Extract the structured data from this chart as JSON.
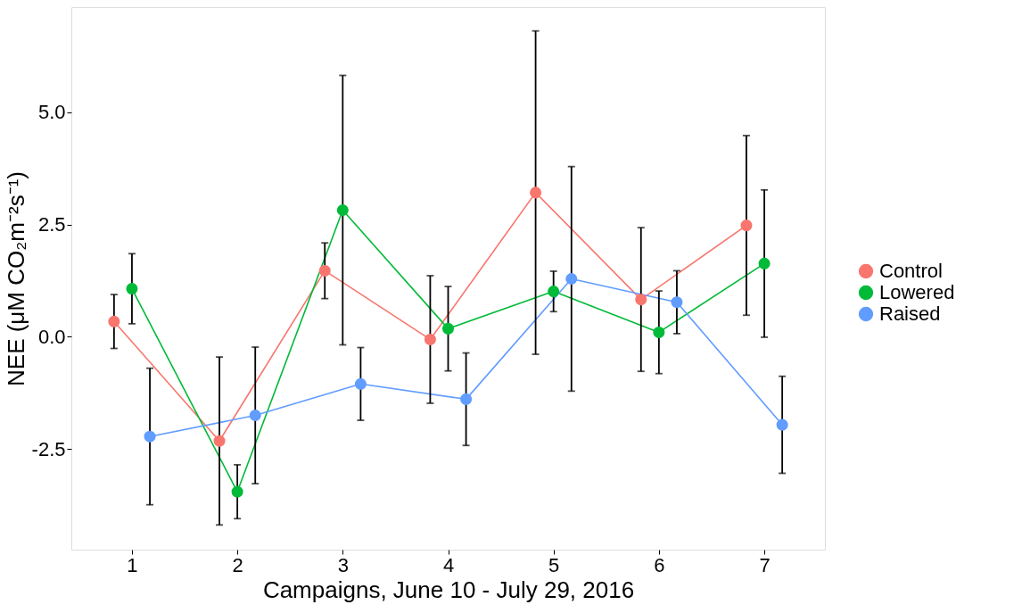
{
  "chart_data": {
    "type": "line",
    "xlabel": "Campaigns, June 10 - July 29, 2016",
    "ylabel": "NEE (μM CO₂m⁻²s⁻¹)",
    "xlim": [
      0.425,
      7.575
    ],
    "xticks": [
      1,
      2,
      3,
      4,
      5,
      6,
      7
    ],
    "ylim": [
      -4.74,
      7.34
    ],
    "yticks": [
      {
        "value": 5,
        "label": "5.0"
      },
      {
        "value": 2.5,
        "label": "2.5"
      },
      {
        "value": 0,
        "label": "0.0"
      },
      {
        "value": -2.5,
        "label": "-2.5"
      }
    ],
    "grid": false,
    "legend": "right",
    "marker": "circle",
    "line_style": "solid",
    "series": [
      {
        "name": "Control",
        "color": "#f8766d",
        "x": [
          0.83,
          1.83,
          2.83,
          3.83,
          4.83,
          5.83,
          6.83
        ],
        "values": [
          0.34,
          -2.32,
          1.47,
          -0.06,
          3.21,
          0.83,
          2.48
        ],
        "errors": [
          0.6,
          1.87,
          0.62,
          1.42,
          3.6,
          1.6,
          2.0
        ]
      },
      {
        "name": "Lowered",
        "color": "#00ba38",
        "x": [
          1,
          2,
          3,
          4,
          5,
          6,
          7
        ],
        "values": [
          1.07,
          -3.45,
          2.82,
          0.18,
          1.01,
          0.1,
          1.63
        ],
        "errors": [
          0.78,
          0.6,
          3.0,
          0.94,
          0.45,
          0.92,
          1.64
        ]
      },
      {
        "name": "Raised",
        "color": "#619cff",
        "x": [
          1.17,
          2.17,
          3.17,
          4.17,
          5.17,
          6.17,
          7.17
        ],
        "values": [
          -2.22,
          -1.75,
          -1.05,
          -1.39,
          1.29,
          0.77,
          -1.96
        ],
        "errors": [
          1.52,
          1.52,
          0.81,
          1.03,
          2.5,
          0.7,
          1.08
        ]
      }
    ]
  }
}
